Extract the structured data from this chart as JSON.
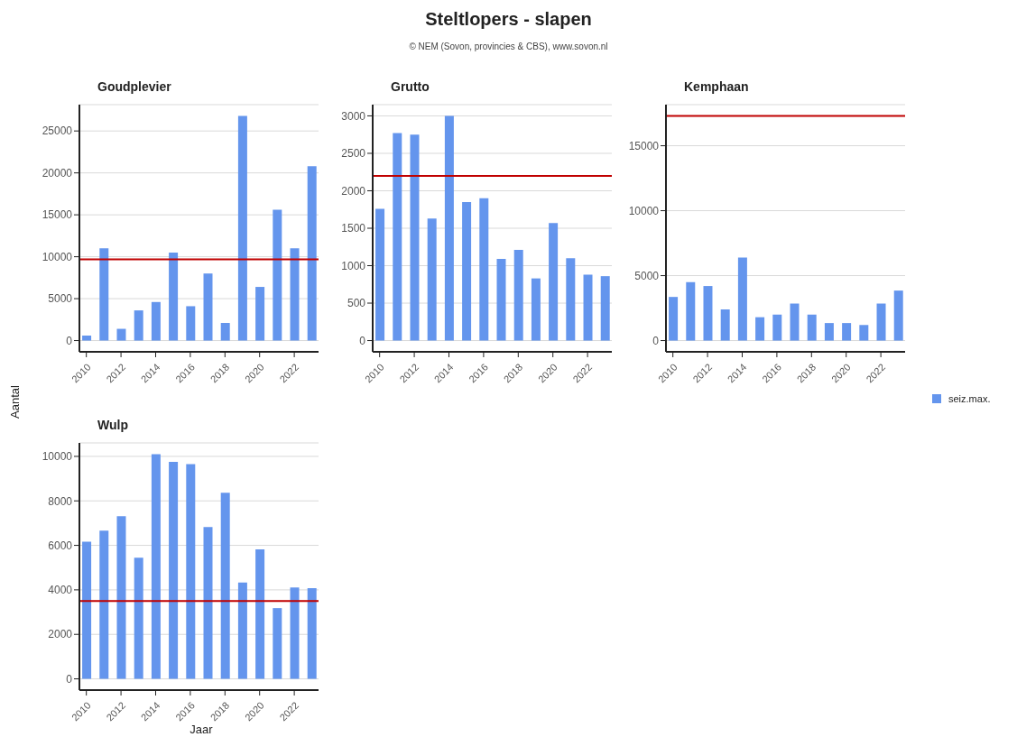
{
  "chart_data": [
    {
      "type": "bar",
      "title": "Goudplevier",
      "annotations": [
        "Steltlopers - slapen",
        "© NEM (Sovon, provincies & CBS), www.sovon.nl"
      ],
      "ylabel": "Aantal",
      "legend": "right",
      "grid": "y",
      "x": [
        2010,
        2011,
        2012,
        2013,
        2014,
        2015,
        2016,
        2017,
        2018,
        2019,
        2020,
        2021,
        2022,
        2023
      ],
      "series": [
        {
          "name": "seiz.max.",
          "color": "#6495ed",
          "values": [
            600,
            11000,
            1400,
            3600,
            4600,
            10500,
            4100,
            8000,
            2100,
            26800,
            6400,
            15600,
            11000,
            20800
          ]
        }
      ],
      "ref_lines": [
        {
          "axis": "y",
          "value": 9700,
          "color": "#c00000"
        }
      ],
      "xlim": [
        2009.6,
        2023.4
      ],
      "xticks": [
        2010,
        2012,
        2014,
        2016,
        2018,
        2020,
        2022
      ],
      "ylim": [
        -1340,
        28140
      ],
      "yticks": [
        0,
        5000,
        10000,
        15000,
        20000,
        25000
      ]
    },
    {
      "type": "bar",
      "title": "Grutto",
      "grid": "y",
      "x": [
        2010,
        2011,
        2012,
        2013,
        2014,
        2015,
        2016,
        2017,
        2018,
        2019,
        2020,
        2021,
        2022,
        2023
      ],
      "series": [
        {
          "color": "#6495ed",
          "values": [
            1760,
            2770,
            2750,
            1630,
            3000,
            1850,
            1900,
            1090,
            1210,
            830,
            1570,
            1100,
            880,
            860
          ]
        }
      ],
      "ref_lines": [
        {
          "axis": "y",
          "value": 2200,
          "color": "#c00000"
        }
      ],
      "xlim": [
        2009.6,
        2023.4
      ],
      "xticks": [
        2010,
        2012,
        2014,
        2016,
        2018,
        2020,
        2022
      ],
      "ylim": [
        -150,
        3150
      ],
      "yticks": [
        0,
        500,
        1000,
        1500,
        2000,
        2500,
        3000
      ]
    },
    {
      "type": "bar",
      "title": "Kemphaan",
      "grid": "y",
      "x": [
        2010,
        2011,
        2012,
        2013,
        2014,
        2015,
        2016,
        2017,
        2018,
        2019,
        2020,
        2021,
        2022,
        2023
      ],
      "series": [
        {
          "color": "#6495ed",
          "values": [
            3360,
            4500,
            4200,
            2400,
            6400,
            1800,
            2000,
            2850,
            2000,
            1350,
            1350,
            1200,
            2850,
            3850
          ]
        }
      ],
      "ref_lines": [
        {
          "axis": "y",
          "value": 17300,
          "color": "#c00000"
        }
      ],
      "xlim": [
        2009.6,
        2023.4
      ],
      "xticks": [
        2010,
        2012,
        2014,
        2016,
        2018,
        2020,
        2022
      ],
      "ylim": [
        -865,
        18165
      ],
      "yticks": [
        0,
        5000,
        10000,
        15000
      ]
    },
    {
      "type": "bar",
      "title": "Wulp",
      "xlabel": "Jaar",
      "grid": "y",
      "x": [
        2010,
        2011,
        2012,
        2013,
        2014,
        2015,
        2016,
        2017,
        2018,
        2019,
        2020,
        2021,
        2022,
        2023
      ],
      "series": [
        {
          "color": "#6495ed",
          "values": [
            6170,
            6660,
            7310,
            5450,
            10100,
            9750,
            9650,
            6820,
            8360,
            4330,
            5820,
            3180,
            4110,
            4080
          ]
        }
      ],
      "ref_lines": [
        {
          "axis": "y",
          "value": 3500,
          "color": "#c00000"
        }
      ],
      "xlim": [
        2009.6,
        2023.4
      ],
      "xticks": [
        2010,
        2012,
        2014,
        2016,
        2018,
        2020,
        2022
      ],
      "ylim": [
        -505,
        10605
      ],
      "yticks": [
        0,
        2000,
        4000,
        6000,
        8000,
        10000
      ]
    }
  ]
}
